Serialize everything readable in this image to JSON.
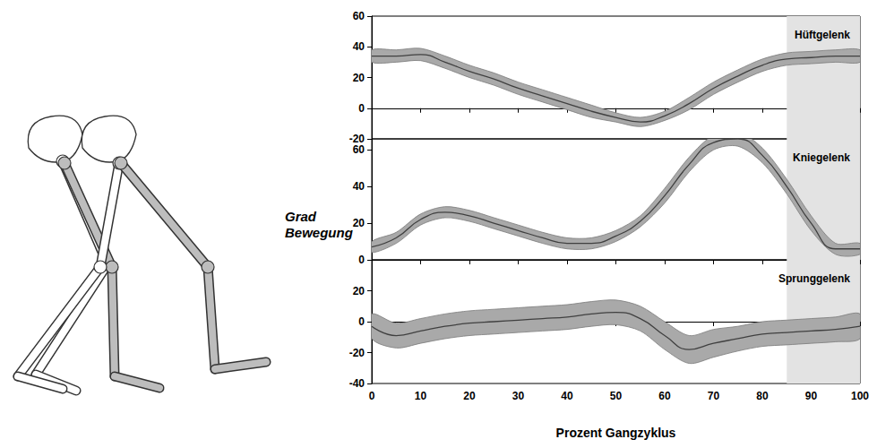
{
  "xlabel": "Prozent Gangzyklus",
  "ylabel": "Grad Bewegung",
  "chart_data": [
    {
      "type": "line",
      "title": "Hüftgelenk",
      "color": "#404040",
      "grid": false,
      "tick_labels": "y",
      "x": [
        0,
        5,
        10,
        15,
        20,
        25,
        30,
        35,
        40,
        45,
        50,
        55,
        60,
        65,
        70,
        75,
        80,
        85,
        90,
        95,
        100
      ],
      "values": [
        34,
        34,
        35,
        30,
        24,
        19,
        13,
        8,
        3,
        -2,
        -6,
        -9,
        -5,
        3,
        13,
        21,
        28,
        32,
        33,
        34,
        34
      ],
      "lower": [
        30,
        30,
        31,
        26,
        20,
        15,
        9,
        4,
        -1,
        -6,
        -9,
        -12,
        -8,
        -1,
        9,
        17,
        24,
        28,
        29,
        30,
        30
      ],
      "upper": [
        38,
        38,
        39,
        34,
        28,
        23,
        17,
        12,
        7,
        2,
        -3,
        -6,
        -2,
        7,
        17,
        25,
        32,
        36,
        37,
        38,
        38
      ],
      "xlim": [
        0,
        100
      ],
      "xticks": [
        0,
        10,
        20,
        30,
        40,
        50,
        60,
        70,
        80,
        90,
        100
      ],
      "ylim": [
        -20,
        60
      ],
      "yticks": [
        -20,
        0,
        20,
        40,
        60
      ],
      "shaded_span": [
        85,
        100
      ]
    },
    {
      "type": "line",
      "title": "Kniegelenk",
      "color": "#404040",
      "grid": false,
      "tick_labels": "y",
      "x": [
        0,
        5,
        10,
        15,
        20,
        25,
        30,
        35,
        40,
        45,
        50,
        55,
        60,
        65,
        70,
        75,
        80,
        85,
        90,
        95,
        100
      ],
      "values": [
        7,
        12,
        22,
        26,
        24,
        20,
        16,
        12,
        9,
        9,
        13,
        21,
        35,
        52,
        64,
        66,
        57,
        40,
        20,
        6,
        6
      ],
      "lower": [
        4,
        9,
        19,
        23,
        21,
        17,
        13,
        9,
        6,
        6,
        10,
        18,
        31,
        48,
        60,
        62,
        53,
        36,
        16,
        3,
        3
      ],
      "upper": [
        10,
        15,
        25,
        29,
        27,
        23,
        19,
        15,
        12,
        12,
        16,
        24,
        39,
        56,
        68,
        70,
        61,
        44,
        24,
        9,
        9
      ],
      "xlim": [
        0,
        100
      ],
      "xticks": [
        0,
        10,
        20,
        30,
        40,
        50,
        60,
        70,
        80,
        90,
        100
      ],
      "ylim": [
        0,
        66
      ],
      "yticks": [
        0,
        20,
        40,
        60
      ],
      "shaded_span": [
        85,
        100
      ]
    },
    {
      "type": "line",
      "title": "Sprunggelenk",
      "color": "#404040",
      "grid": false,
      "x": [
        0,
        5,
        10,
        15,
        20,
        25,
        30,
        35,
        40,
        45,
        50,
        55,
        60,
        65,
        70,
        75,
        80,
        85,
        90,
        95,
        100
      ],
      "values": [
        -3,
        -9,
        -6,
        -3,
        -1,
        0,
        1,
        2,
        3,
        5,
        6,
        2,
        -9,
        -18,
        -14,
        -11,
        -8,
        -7,
        -6,
        -5,
        -3
      ],
      "lower": [
        -11,
        -17,
        -14,
        -11,
        -9,
        -8,
        -7,
        -6,
        -5,
        -3,
        -2,
        -6,
        -18,
        -27,
        -23,
        -19,
        -16,
        -15,
        -14,
        -13,
        -11
      ],
      "upper": [
        5,
        -1,
        2,
        5,
        7,
        8,
        9,
        10,
        11,
        13,
        14,
        10,
        0,
        -9,
        -5,
        -3,
        0,
        1,
        2,
        3,
        5
      ],
      "xlim": [
        0,
        100
      ],
      "xticks": [
        0,
        10,
        20,
        30,
        40,
        50,
        60,
        70,
        80,
        90,
        100
      ],
      "ylim": [
        -40,
        40
      ],
      "yticks": [
        -40,
        -20,
        0,
        20
      ],
      "shaded_span": [
        85,
        100
      ]
    }
  ]
}
